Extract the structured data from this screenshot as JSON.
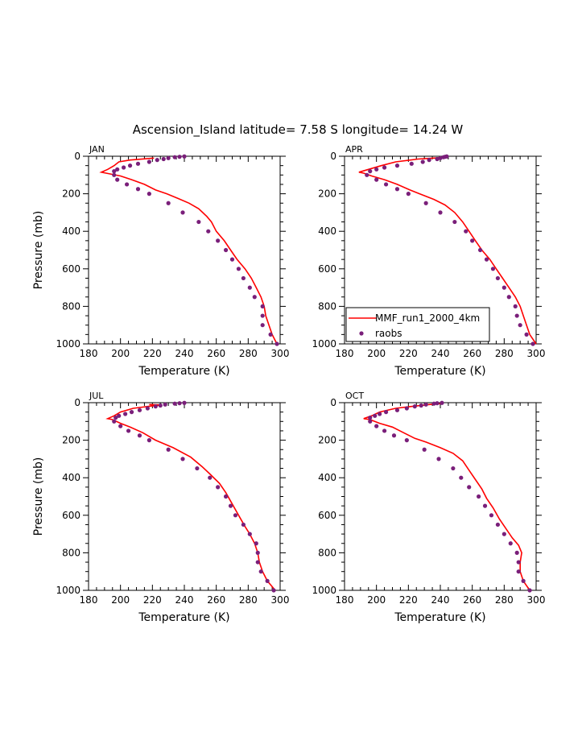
{
  "title": "Ascension_Island  latitude= 7.58 S longitude= 14.24 W",
  "colors": {
    "model": "#ff0000",
    "obs": "#7a1f7a",
    "axis": "#000000"
  },
  "legend": {
    "model_label": "MMF_run1_2000_4km",
    "obs_label": "raobs",
    "panel": "APR"
  },
  "chart_data": [
    {
      "type": "line",
      "panel": "JAN",
      "xlabel": "Temperature (K)",
      "ylabel": "Pressure (mb)",
      "xlim": [
        180,
        300
      ],
      "ylim": [
        1000,
        0
      ],
      "xticks": [
        180,
        200,
        220,
        240,
        260,
        280,
        300
      ],
      "yticks": [
        0,
        200,
        400,
        600,
        800,
        1000
      ],
      "series": [
        {
          "name": "MMF_run1_2000_4km",
          "kind": "line",
          "points": [
            [
              221,
              10
            ],
            [
              206,
              20
            ],
            [
              199,
              30
            ],
            [
              196,
              50
            ],
            [
              192,
              70
            ],
            [
              188,
              85
            ],
            [
              191,
              90
            ],
            [
              200,
              105
            ],
            [
              207,
              125
            ],
            [
              215,
              150
            ],
            [
              222,
              180
            ],
            [
              229,
              200
            ],
            [
              236,
              225
            ],
            [
              243,
              250
            ],
            [
              249,
              280
            ],
            [
              254,
              320
            ],
            [
              257,
              350
            ],
            [
              260,
              400
            ],
            [
              265,
              450
            ],
            [
              269,
              500
            ],
            [
              273,
              550
            ],
            [
              278,
              600
            ],
            [
              282,
              650
            ],
            [
              285,
              700
            ],
            [
              288,
              750
            ],
            [
              290,
              800
            ],
            [
              291,
              850
            ],
            [
              293,
              900
            ],
            [
              295,
              950
            ],
            [
              298,
              1000
            ]
          ]
        },
        {
          "name": "raobs",
          "kind": "scatter",
          "points": [
            [
              240,
              1
            ],
            [
              237,
              3
            ],
            [
              234,
              5
            ],
            [
              230,
              10
            ],
            [
              227,
              15
            ],
            [
              223,
              20
            ],
            [
              218,
              30
            ],
            [
              211,
              40
            ],
            [
              206,
              50
            ],
            [
              202,
              60
            ],
            [
              198,
              70
            ],
            [
              196,
              80
            ],
            [
              196,
              100
            ],
            [
              198,
              125
            ],
            [
              204,
              150
            ],
            [
              211,
              175
            ],
            [
              218,
              200
            ],
            [
              230,
              250
            ],
            [
              239,
              300
            ],
            [
              249,
              350
            ],
            [
              255,
              400
            ],
            [
              261,
              450
            ],
            [
              266,
              500
            ],
            [
              270,
              550
            ],
            [
              274,
              600
            ],
            [
              277,
              650
            ],
            [
              281,
              700
            ],
            [
              284,
              750
            ],
            [
              289,
              800
            ],
            [
              289,
              850
            ],
            [
              289,
              900
            ],
            [
              294,
              950
            ],
            [
              298,
              1000
            ]
          ]
        }
      ]
    },
    {
      "type": "line",
      "panel": "APR",
      "xlabel": "Temperature (K)",
      "ylabel": "",
      "xlim": [
        180,
        300
      ],
      "ylim": [
        1000,
        0
      ],
      "xticks": [
        180,
        200,
        220,
        240,
        260,
        280,
        300
      ],
      "yticks": [
        0,
        200,
        400,
        600,
        800,
        1000
      ],
      "series": [
        {
          "name": "MMF_run1_2000_4km",
          "kind": "line",
          "points": [
            [
              243,
              5
            ],
            [
              236,
              10
            ],
            [
              226,
              15
            ],
            [
              212,
              30
            ],
            [
              203,
              50
            ],
            [
              195,
              70
            ],
            [
              189,
              85
            ],
            [
              192,
              90
            ],
            [
              197,
              105
            ],
            [
              205,
              125
            ],
            [
              213,
              150
            ],
            [
              221,
              180
            ],
            [
              227,
              200
            ],
            [
              236,
              230
            ],
            [
              243,
              260
            ],
            [
              249,
              300
            ],
            [
              254,
              350
            ],
            [
              258,
              400
            ],
            [
              262,
              450
            ],
            [
              266,
              500
            ],
            [
              271,
              550
            ],
            [
              275,
              600
            ],
            [
              279,
              650
            ],
            [
              283,
              700
            ],
            [
              287,
              750
            ],
            [
              290,
              800
            ],
            [
              292,
              850
            ],
            [
              294,
              900
            ],
            [
              296,
              950
            ],
            [
              300,
              1000
            ]
          ]
        },
        {
          "name": "raobs",
          "kind": "scatter",
          "points": [
            [
              244,
              1
            ],
            [
              243,
              3
            ],
            [
              242,
              5
            ],
            [
              240,
              10
            ],
            [
              238,
              15
            ],
            [
              233,
              20
            ],
            [
              229,
              30
            ],
            [
              222,
              40
            ],
            [
              213,
              50
            ],
            [
              205,
              60
            ],
            [
              200,
              70
            ],
            [
              196,
              80
            ],
            [
              194,
              100
            ],
            [
              200,
              125
            ],
            [
              206,
              150
            ],
            [
              213,
              175
            ],
            [
              220,
              200
            ],
            [
              231,
              250
            ],
            [
              240,
              300
            ],
            [
              249,
              350
            ],
            [
              256,
              400
            ],
            [
              260,
              450
            ],
            [
              265,
              500
            ],
            [
              269,
              550
            ],
            [
              273,
              600
            ],
            [
              276,
              650
            ],
            [
              280,
              700
            ],
            [
              283,
              750
            ],
            [
              287,
              800
            ],
            [
              288,
              850
            ],
            [
              290,
              900
            ],
            [
              294,
              950
            ],
            [
              298,
              1000
            ]
          ]
        }
      ]
    },
    {
      "type": "line",
      "panel": "JUL",
      "xlabel": "Temperature (K)",
      "ylabel": "Pressure (mb)",
      "xlim": [
        180,
        300
      ],
      "ylim": [
        1000,
        0
      ],
      "xticks": [
        180,
        200,
        220,
        240,
        260,
        280,
        300
      ],
      "yticks": [
        0,
        200,
        400,
        600,
        800,
        1000
      ],
      "series": [
        {
          "name": "MMF_run1_2000_4km",
          "kind": "line",
          "points": [
            [
              218,
              10
            ],
            [
              226,
              12
            ],
            [
              219,
              18
            ],
            [
              208,
              30
            ],
            [
              200,
              50
            ],
            [
              196,
              70
            ],
            [
              192,
              85
            ],
            [
              195,
              90
            ],
            [
              200,
              110
            ],
            [
              206,
              130
            ],
            [
              214,
              160
            ],
            [
              222,
              200
            ],
            [
              233,
              240
            ],
            [
              244,
              290
            ],
            [
              251,
              340
            ],
            [
              256,
              380
            ],
            [
              262,
              430
            ],
            [
              266,
              480
            ],
            [
              270,
              540
            ],
            [
              274,
              600
            ],
            [
              278,
              660
            ],
            [
              281,
              700
            ],
            [
              284,
              750
            ],
            [
              286,
              800
            ],
            [
              287,
              850
            ],
            [
              289,
              900
            ],
            [
              292,
              950
            ],
            [
              297,
              1000
            ]
          ]
        },
        {
          "name": "raobs",
          "kind": "scatter",
          "points": [
            [
              240,
              1
            ],
            [
              237,
              3
            ],
            [
              234,
              5
            ],
            [
              228,
              10
            ],
            [
              225,
              15
            ],
            [
              222,
              20
            ],
            [
              217,
              30
            ],
            [
              212,
              40
            ],
            [
              207,
              50
            ],
            [
              203,
              60
            ],
            [
              199,
              70
            ],
            [
              197,
              80
            ],
            [
              196,
              100
            ],
            [
              200,
              125
            ],
            [
              205,
              150
            ],
            [
              212,
              175
            ],
            [
              218,
              200
            ],
            [
              230,
              250
            ],
            [
              239,
              300
            ],
            [
              248,
              350
            ],
            [
              256,
              400
            ],
            [
              261,
              450
            ],
            [
              266,
              500
            ],
            [
              269,
              550
            ],
            [
              272,
              600
            ],
            [
              277,
              650
            ],
            [
              281,
              700
            ],
            [
              285,
              750
            ],
            [
              286,
              800
            ],
            [
              286,
              850
            ],
            [
              288,
              900
            ],
            [
              292,
              950
            ],
            [
              296,
              1000
            ]
          ]
        }
      ]
    },
    {
      "type": "line",
      "panel": "OCT",
      "xlabel": "Temperature (K)",
      "ylabel": "",
      "xlim": [
        180,
        300
      ],
      "ylim": [
        1000,
        0
      ],
      "xticks": [
        180,
        200,
        220,
        240,
        260,
        280,
        300
      ],
      "yticks": [
        0,
        200,
        400,
        600,
        800,
        1000
      ],
      "series": [
        {
          "name": "MMF_run1_2000_4km",
          "kind": "line",
          "points": [
            [
              240,
              5
            ],
            [
              233,
              10
            ],
            [
              222,
              20
            ],
            [
              212,
              30
            ],
            [
              202,
              50
            ],
            [
              197,
              70
            ],
            [
              192,
              85
            ],
            [
              196,
              90
            ],
            [
              202,
              110
            ],
            [
              210,
              130
            ],
            [
              217,
              160
            ],
            [
              224,
              190
            ],
            [
              231,
              210
            ],
            [
              240,
              240
            ],
            [
              248,
              270
            ],
            [
              254,
              310
            ],
            [
              258,
              360
            ],
            [
              262,
              410
            ],
            [
              266,
              460
            ],
            [
              269,
              510
            ],
            [
              273,
              560
            ],
            [
              277,
              620
            ],
            [
              281,
              670
            ],
            [
              285,
              720
            ],
            [
              289,
              760
            ],
            [
              291,
              800
            ],
            [
              290,
              850
            ],
            [
              290,
              900
            ],
            [
              292,
              950
            ],
            [
              296,
              1000
            ]
          ]
        },
        {
          "name": "raobs",
          "kind": "scatter",
          "points": [
            [
              241,
              1
            ],
            [
              238,
              3
            ],
            [
              236,
              5
            ],
            [
              231,
              10
            ],
            [
              228,
              15
            ],
            [
              224,
              20
            ],
            [
              219,
              30
            ],
            [
              213,
              40
            ],
            [
              206,
              50
            ],
            [
              202,
              60
            ],
            [
              199,
              70
            ],
            [
              196,
              80
            ],
            [
              196,
              100
            ],
            [
              200,
              125
            ],
            [
              205,
              150
            ],
            [
              211,
              175
            ],
            [
              219,
              200
            ],
            [
              230,
              250
            ],
            [
              239,
              300
            ],
            [
              248,
              350
            ],
            [
              253,
              400
            ],
            [
              258,
              450
            ],
            [
              264,
              500
            ],
            [
              268,
              550
            ],
            [
              272,
              600
            ],
            [
              276,
              650
            ],
            [
              280,
              700
            ],
            [
              284,
              750
            ],
            [
              288,
              800
            ],
            [
              289,
              850
            ],
            [
              289,
              900
            ],
            [
              292,
              950
            ],
            [
              296,
              1000
            ]
          ]
        }
      ]
    }
  ]
}
